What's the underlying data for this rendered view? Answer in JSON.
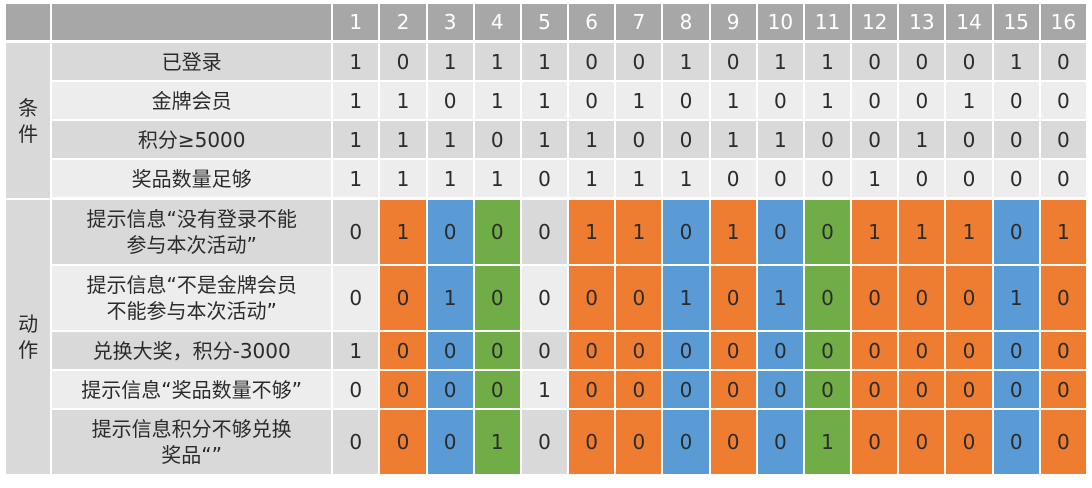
{
  "columns": [
    "1",
    "2",
    "3",
    "4",
    "5",
    "6",
    "7",
    "8",
    "9",
    "10",
    "11",
    "12",
    "13",
    "14",
    "15",
    "16"
  ],
  "column_colors": [
    "none",
    "orange",
    "blue",
    "green",
    "none",
    "orange",
    "orange",
    "blue",
    "orange",
    "blue",
    "green",
    "orange",
    "orange",
    "orange",
    "blue",
    "orange"
  ],
  "colors": {
    "orange": "#ee7d31",
    "blue": "#5b9bd5",
    "green": "#70ad47",
    "header_gray": "#a7a7a7",
    "row_gray_dark": "#d9d9d9",
    "row_gray_light": "#ededed"
  },
  "conditions": {
    "group_label": "条件",
    "rows": [
      {
        "label": "已登录",
        "values": [
          "1",
          "0",
          "1",
          "1",
          "1",
          "0",
          "0",
          "1",
          "0",
          "1",
          "1",
          "0",
          "0",
          "0",
          "1",
          "0"
        ]
      },
      {
        "label": "金牌会员",
        "values": [
          "1",
          "1",
          "0",
          "1",
          "1",
          "0",
          "1",
          "0",
          "1",
          "0",
          "1",
          "0",
          "0",
          "1",
          "0",
          "0"
        ]
      },
      {
        "label": "积分≥5000",
        "values": [
          "1",
          "1",
          "1",
          "0",
          "1",
          "1",
          "0",
          "0",
          "1",
          "1",
          "0",
          "0",
          "1",
          "0",
          "0",
          "0"
        ]
      },
      {
        "label": "奖品数量足够",
        "values": [
          "1",
          "1",
          "1",
          "1",
          "0",
          "1",
          "1",
          "1",
          "0",
          "0",
          "0",
          "1",
          "0",
          "0",
          "0",
          "0"
        ]
      }
    ]
  },
  "actions": {
    "group_label": "动作",
    "rows": [
      {
        "label": "提示信息“没有登录不能参与本次活动”",
        "label_lines": [
          "提示信息“没有登录不能",
          "参与本次活动”"
        ],
        "values": [
          "0",
          "1",
          "0",
          "0",
          "0",
          "1",
          "1",
          "0",
          "1",
          "0",
          "0",
          "1",
          "1",
          "1",
          "0",
          "1"
        ]
      },
      {
        "label": "提示信息“不是金牌会员不能参与本次活动”",
        "label_lines": [
          "提示信息“不是金牌会员",
          "不能参与本次活动”"
        ],
        "values": [
          "0",
          "0",
          "1",
          "0",
          "0",
          "0",
          "0",
          "1",
          "0",
          "1",
          "0",
          "0",
          "0",
          "0",
          "1",
          "0"
        ]
      },
      {
        "label": "兑换大奖，积分-3000",
        "label_lines": [
          "兑换大奖，积分-3000"
        ],
        "values": [
          "1",
          "0",
          "0",
          "0",
          "0",
          "0",
          "0",
          "0",
          "0",
          "0",
          "0",
          "0",
          "0",
          "0",
          "0",
          "0"
        ]
      },
      {
        "label": "提示信息“奖品数量不够”",
        "label_lines": [
          "提示信息“奖品数量不够”"
        ],
        "values": [
          "0",
          "0",
          "0",
          "0",
          "1",
          "0",
          "0",
          "0",
          "0",
          "0",
          "0",
          "0",
          "0",
          "0",
          "0",
          "0"
        ]
      },
      {
        "label": "提示信息积分不够兑换奖品“”",
        "label_lines": [
          "提示信息积分不够兑换",
          "奖品“”"
        ],
        "values": [
          "0",
          "0",
          "0",
          "1",
          "0",
          "0",
          "0",
          "0",
          "0",
          "0",
          "1",
          "0",
          "0",
          "0",
          "0",
          "0"
        ]
      }
    ]
  }
}
